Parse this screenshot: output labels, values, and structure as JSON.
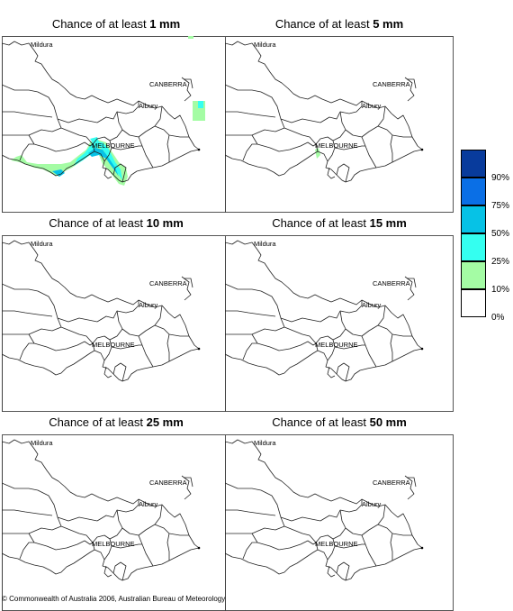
{
  "panels": [
    {
      "prefix": "Chance of at least ",
      "amount": "1 mm"
    },
    {
      "prefix": "Chance of at least ",
      "amount": "5 mm"
    },
    {
      "prefix": "Chance of at least ",
      "amount": "10 mm"
    },
    {
      "prefix": "Chance of at least ",
      "amount": "15 mm"
    },
    {
      "prefix": "Chance of at least ",
      "amount": "25 mm"
    },
    {
      "prefix": "Chance of at least ",
      "amount": "50 mm"
    }
  ],
  "places": {
    "mildura": "Mildura",
    "canberra": "CANBERRA",
    "albury": "Albury",
    "melbourne": "MELBOURNE"
  },
  "legend": {
    "labels": [
      "90%",
      "75%",
      "50%",
      "25%",
      "10%",
      "0%"
    ],
    "colors": [
      "#083b9c",
      "#0a6fe6",
      "#06c2e6",
      "#34fff0",
      "#a4fca4",
      "#ffffff"
    ]
  },
  "copyright": "© Commonwealth of Australia 2006, Australian Bureau of Meteorology"
}
